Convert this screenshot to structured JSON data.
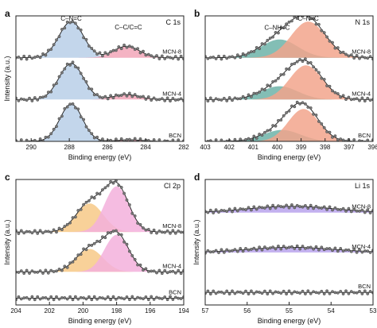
{
  "figure": {
    "style": {
      "curve_color": "#1a1a1a",
      "marker_color": "#7a7a7a"
    }
  },
  "chart_data": [
    {
      "panel": "a",
      "type": "line",
      "subtype": "xps-stacked-spectra",
      "core_level": "C 1s",
      "xlabel": "Binding energy (eV)",
      "ylabel": "Intensity (a.u.)",
      "xlim": [
        290.8,
        282
      ],
      "x_reversed": true,
      "x_ticks": [
        290,
        288,
        286,
        284,
        282
      ],
      "ylim": [
        0,
        3.3
      ],
      "series": [
        {
          "name": "MCN-8",
          "offset": 2.2,
          "components": [
            {
              "label": "C–N=C",
              "color": "#b8cfe8",
              "center": 287.9,
              "height": 0.95,
              "fwhm": 1.5
            },
            {
              "label": "C–C/C=C",
              "color": "#f2a6b8",
              "center": 285.0,
              "height": 0.3,
              "fwhm": 1.6
            }
          ]
        },
        {
          "name": "MCN-4",
          "offset": 1.1,
          "components": [
            {
              "label": "",
              "color": "#b8cfe8",
              "center": 287.9,
              "height": 0.95,
              "fwhm": 1.5
            },
            {
              "label": "",
              "color": "#f2a6b8",
              "center": 285.0,
              "height": 0.13,
              "fwhm": 1.6
            }
          ]
        },
        {
          "name": "BCN",
          "offset": 0.0,
          "components": [
            {
              "label": "",
              "color": "#b8cfe8",
              "center": 287.9,
              "height": 0.98,
              "fwhm": 1.4
            },
            {
              "label": "",
              "color": "#f2a6b8",
              "center": 284.8,
              "height": 0.04,
              "fwhm": 1.6
            }
          ]
        }
      ],
      "annotations": [
        {
          "text": "C–N=C",
          "x": 287.9,
          "y": 3.17
        },
        {
          "text": "C–C/C=C",
          "x": 284.9,
          "y": 2.95
        }
      ]
    },
    {
      "panel": "b",
      "type": "line",
      "subtype": "xps-stacked-spectra",
      "core_level": "N 1s",
      "xlabel": "Binding energy (eV)",
      "ylabel": "",
      "xlim": [
        403,
        396
      ],
      "x_reversed": true,
      "x_ticks": [
        403,
        402,
        401,
        400,
        399,
        398,
        397,
        396
      ],
      "ylim": [
        0,
        3.3
      ],
      "series": [
        {
          "name": "MCN-8",
          "offset": 2.2,
          "components": [
            {
              "label": "C–NH–C",
              "color": "#6db3a8",
              "center": 399.9,
              "height": 0.48,
              "fwhm": 1.8
            },
            {
              "label": "C–N=C",
              "color": "#f2a58c",
              "center": 398.7,
              "height": 0.95,
              "fwhm": 1.7
            }
          ]
        },
        {
          "name": "MCN-4",
          "offset": 1.1,
          "components": [
            {
              "label": "",
              "color": "#6db3a8",
              "center": 399.9,
              "height": 0.35,
              "fwhm": 1.8
            },
            {
              "label": "",
              "color": "#f2a58c",
              "center": 398.8,
              "height": 0.9,
              "fwhm": 1.6
            }
          ]
        },
        {
          "name": "BCN",
          "offset": 0.0,
          "components": [
            {
              "label": "",
              "color": "#6db3a8",
              "center": 399.8,
              "height": 0.3,
              "fwhm": 1.8
            },
            {
              "label": "",
              "color": "#f2a58c",
              "center": 398.9,
              "height": 0.85,
              "fwhm": 1.5
            }
          ]
        }
      ],
      "annotations": [
        {
          "text": "C–NH–C",
          "x": 400.0,
          "y": 2.93
        },
        {
          "text": "C–N=C",
          "x": 398.7,
          "y": 3.17
        }
      ]
    },
    {
      "panel": "c",
      "type": "line",
      "subtype": "xps-stacked-spectra",
      "core_level": "Cl 2p",
      "xlabel": "Binding energy (eV)",
      "ylabel": "Intensity (a.u.)",
      "xlim": [
        204,
        194
      ],
      "x_reversed": true,
      "x_ticks": [
        204,
        202,
        200,
        198,
        196,
        194
      ],
      "ylim": [
        0,
        2.2
      ],
      "series": [
        {
          "name": "MCN-8",
          "offset": 1.28,
          "components": [
            {
              "label": "",
              "color": "#f7c987",
              "center": 199.6,
              "height": 0.5,
              "fwhm": 1.9
            },
            {
              "label": "",
              "color": "#f3b0dc",
              "center": 198.0,
              "height": 0.8,
              "fwhm": 1.7
            }
          ]
        },
        {
          "name": "MCN-4",
          "offset": 0.58,
          "components": [
            {
              "label": "",
              "color": "#f7c987",
              "center": 199.6,
              "height": 0.4,
              "fwhm": 1.9
            },
            {
              "label": "",
              "color": "#f3b0dc",
              "center": 198.0,
              "height": 0.65,
              "fwhm": 1.7
            }
          ]
        },
        {
          "name": "BCN",
          "offset": 0.12,
          "components": []
        }
      ],
      "annotations": []
    },
    {
      "panel": "d",
      "type": "line",
      "subtype": "xps-stacked-spectra",
      "core_level": "Li 1s",
      "xlabel": "Binding energy (eV)",
      "ylabel": "Intensity (a.u.)",
      "xlim": [
        57,
        53
      ],
      "x_reversed": true,
      "x_ticks": [
        57,
        56,
        55,
        54,
        53
      ],
      "ylim": [
        0,
        2.2
      ],
      "series": [
        {
          "name": "MCN-8",
          "offset": 1.62,
          "components": [
            {
              "label": "",
              "color": "#b9a3ec",
              "center": 54.95,
              "height": 0.11,
              "fwhm": 2.4
            }
          ]
        },
        {
          "name": "MCN-4",
          "offset": 0.92,
          "components": [
            {
              "label": "",
              "color": "#b9a3ec",
              "center": 54.95,
              "height": 0.09,
              "fwhm": 2.4
            }
          ]
        },
        {
          "name": "BCN",
          "offset": 0.22,
          "components": []
        }
      ],
      "annotations": []
    }
  ]
}
